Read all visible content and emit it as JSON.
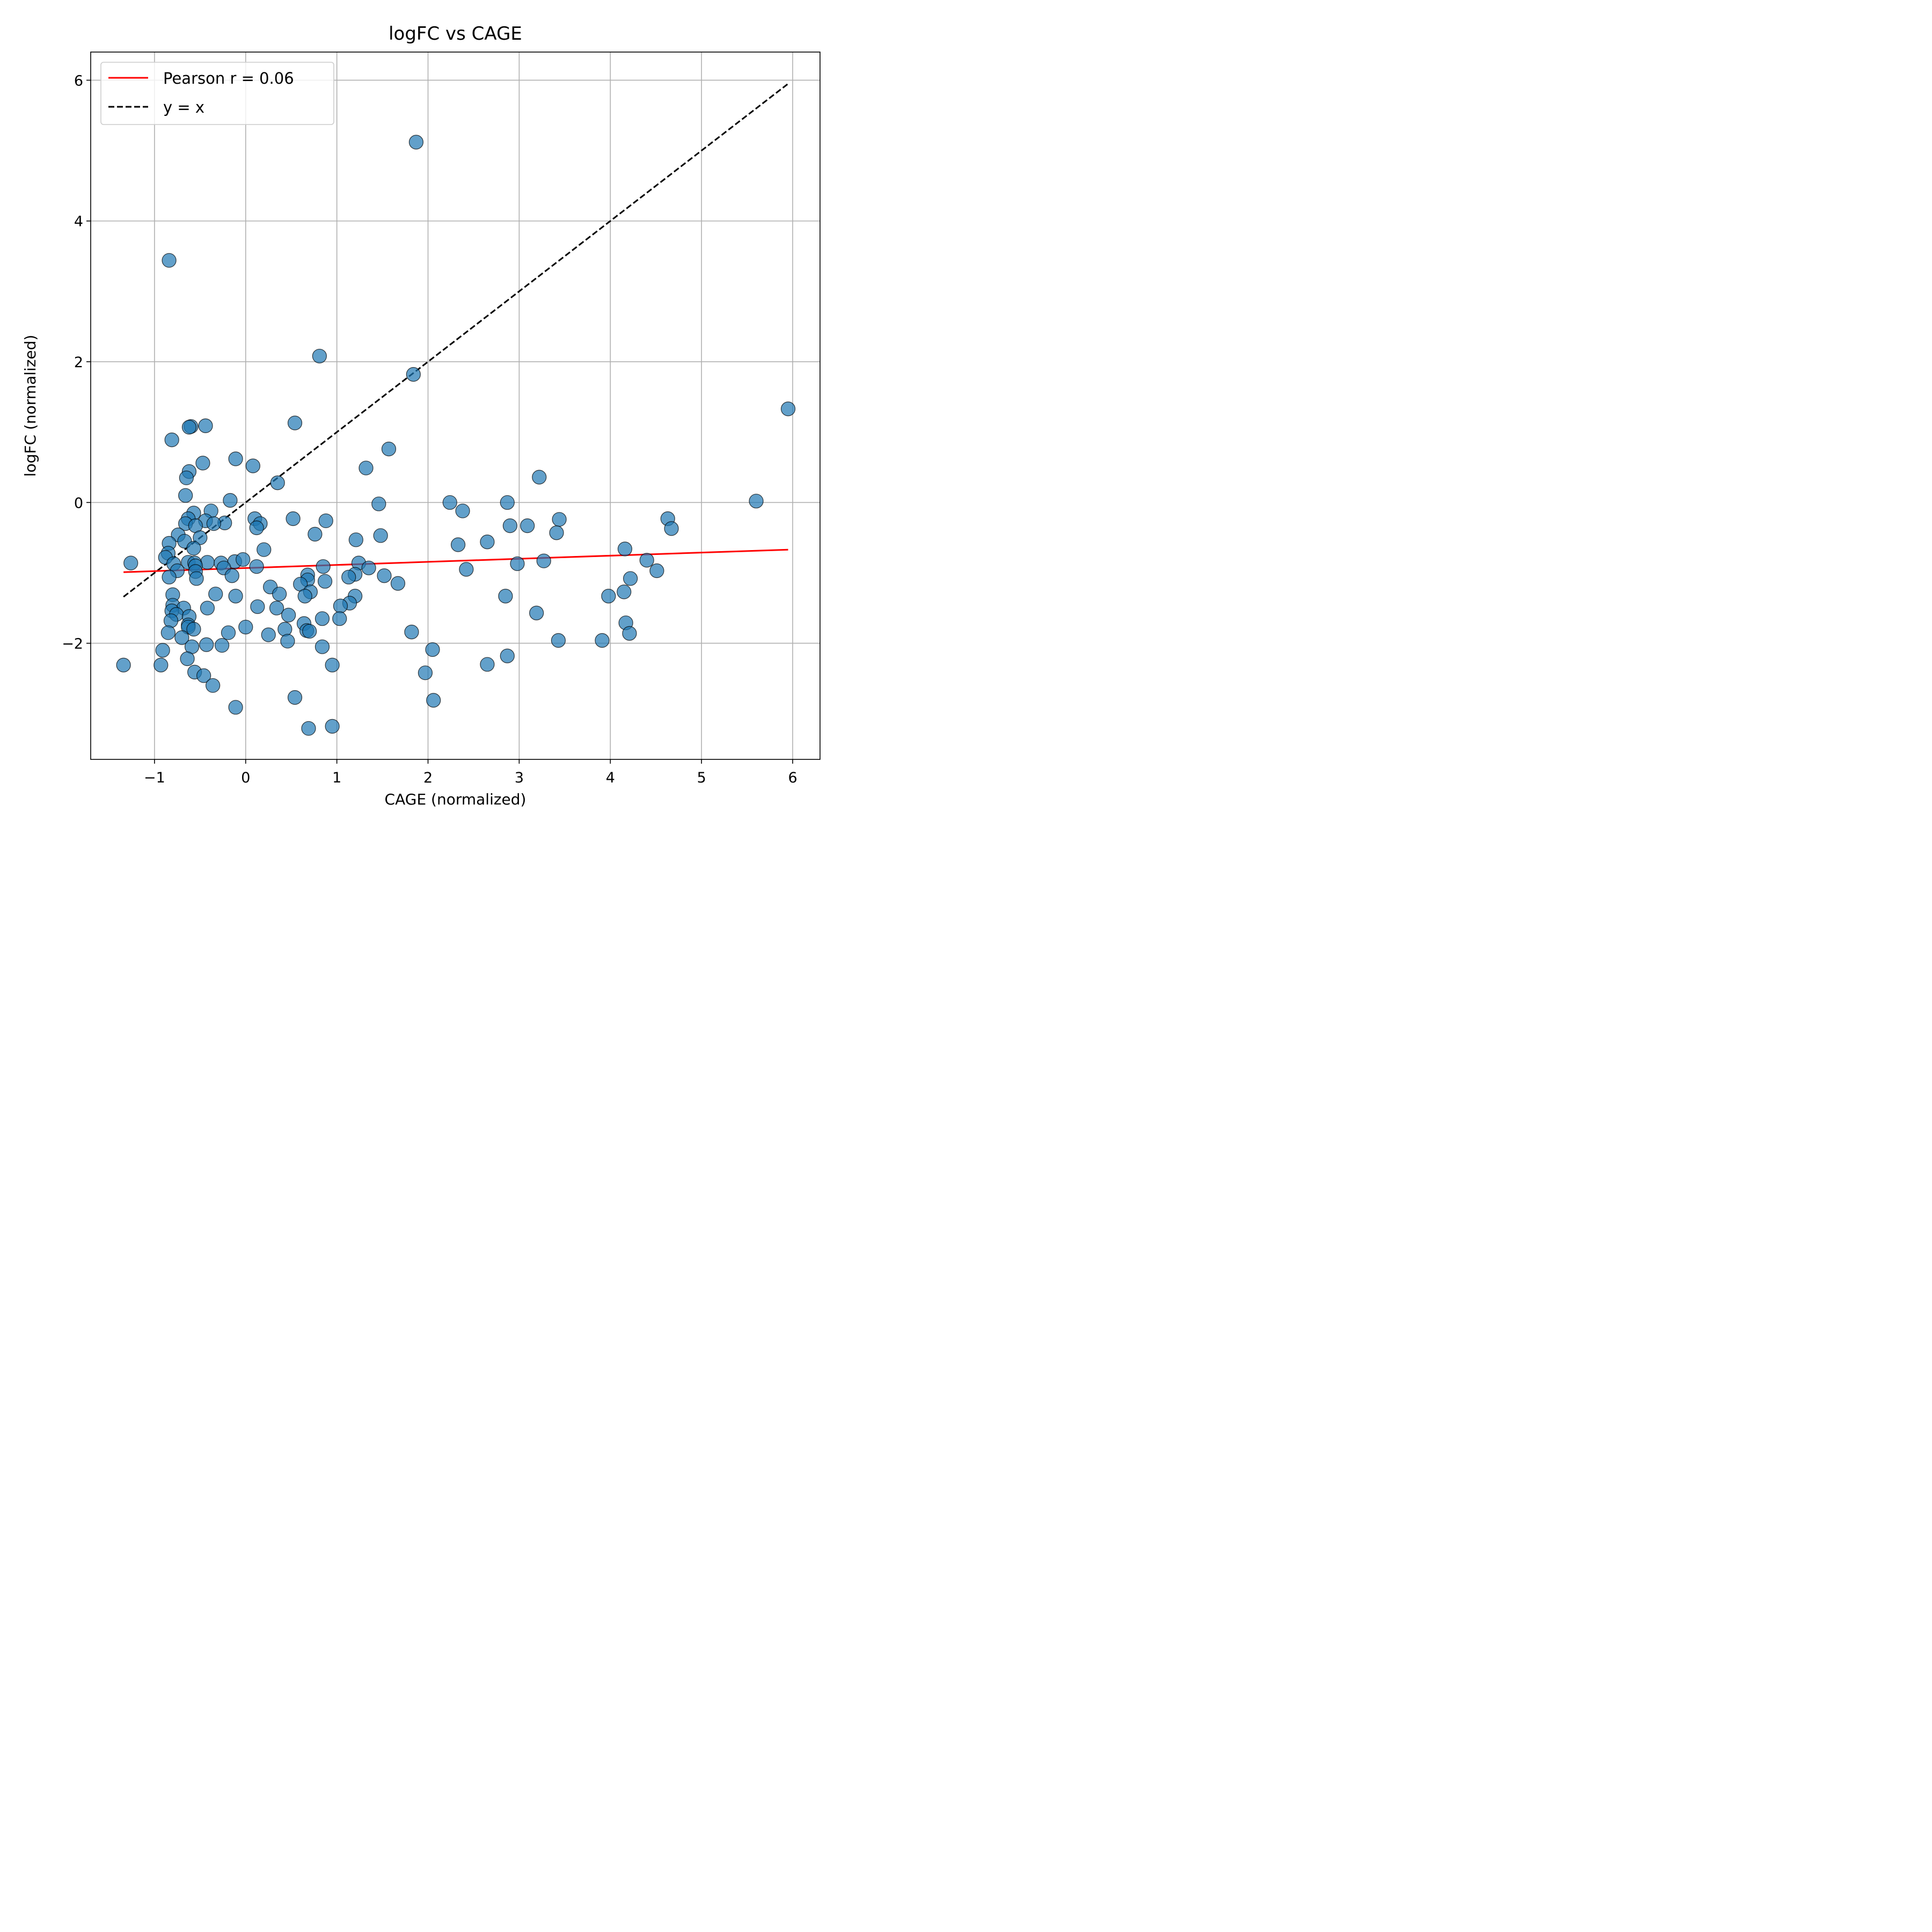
{
  "chart_data": {
    "type": "scatter",
    "title": "logFC vs CAGE",
    "xlabel": "CAGE (normalized)",
    "ylabel": "logFC (normalized)",
    "xlim": [
      -1.7,
      6.3
    ],
    "ylim": [
      -3.65,
      6.4
    ],
    "xticks": [
      -1,
      0,
      1,
      2,
      3,
      4,
      5,
      6
    ],
    "xtick_labels": [
      "−1",
      "0",
      "1",
      "2",
      "3",
      "4",
      "5",
      "6"
    ],
    "yticks": [
      -2,
      0,
      2,
      4,
      6
    ],
    "ytick_labels": [
      "−2",
      "0",
      "2",
      "4",
      "6"
    ],
    "grid": true,
    "legend_position": "upper-left",
    "colors": {
      "points": "#1f77b4",
      "fit_line": "#ff0000",
      "identity_line": "#000000"
    },
    "legend": [
      {
        "label": "Pearson r = 0.06",
        "style": "solid",
        "color": "#ff0000"
      },
      {
        "label": "y = x",
        "style": "dashed",
        "color": "#000000"
      }
    ],
    "fit_line": {
      "x": [
        -1.34,
        5.95
      ],
      "y": [
        -0.99,
        -0.67
      ]
    },
    "identity_line": {
      "x": [
        -1.34,
        5.95
      ],
      "y": [
        -1.34,
        5.95
      ]
    },
    "points": [
      [
        1.87,
        5.12
      ],
      [
        -0.84,
        3.44
      ],
      [
        0.81,
        2.08
      ],
      [
        1.84,
        1.82
      ],
      [
        5.95,
        1.33
      ],
      [
        0.54,
        1.13
      ],
      [
        -0.6,
        1.08
      ],
      [
        -0.62,
        1.07
      ],
      [
        -0.44,
        1.09
      ],
      [
        -0.81,
        0.89
      ],
      [
        1.57,
        0.76
      ],
      [
        -0.11,
        0.62
      ],
      [
        -0.47,
        0.56
      ],
      [
        0.08,
        0.52
      ],
      [
        1.32,
        0.49
      ],
      [
        -0.62,
        0.44
      ],
      [
        -0.65,
        0.35
      ],
      [
        3.22,
        0.36
      ],
      [
        0.35,
        0.28
      ],
      [
        -0.66,
        0.1
      ],
      [
        -0.17,
        0.03
      ],
      [
        5.6,
        0.02
      ],
      [
        2.24,
        0.0
      ],
      [
        2.87,
        0.0
      ],
      [
        1.46,
        -0.02
      ],
      [
        -0.38,
        -0.12
      ],
      [
        -0.57,
        -0.15
      ],
      [
        2.38,
        -0.12
      ],
      [
        0.52,
        -0.23
      ],
      [
        0.1,
        -0.23
      ],
      [
        -0.63,
        -0.23
      ],
      [
        3.44,
        -0.24
      ],
      [
        4.63,
        -0.23
      ],
      [
        0.88,
        -0.26
      ],
      [
        -0.44,
        -0.26
      ],
      [
        -0.23,
        -0.29
      ],
      [
        0.16,
        -0.3
      ],
      [
        -0.35,
        -0.3
      ],
      [
        -0.66,
        -0.3
      ],
      [
        -0.55,
        -0.33
      ],
      [
        3.09,
        -0.33
      ],
      [
        2.9,
        -0.33
      ],
      [
        0.12,
        -0.36
      ],
      [
        4.67,
        -0.37
      ],
      [
        3.41,
        -0.43
      ],
      [
        0.76,
        -0.45
      ],
      [
        -0.74,
        -0.46
      ],
      [
        1.48,
        -0.47
      ],
      [
        -0.5,
        -0.5
      ],
      [
        1.21,
        -0.53
      ],
      [
        -0.84,
        -0.58
      ],
      [
        -0.67,
        -0.55
      ],
      [
        2.65,
        -0.56
      ],
      [
        2.33,
        -0.6
      ],
      [
        -0.57,
        -0.65
      ],
      [
        4.16,
        -0.66
      ],
      [
        0.2,
        -0.67
      ],
      [
        -0.85,
        -0.72
      ],
      [
        -0.88,
        -0.78
      ],
      [
        4.4,
        -0.82
      ],
      [
        3.27,
        -0.83
      ],
      [
        -0.63,
        -0.85
      ],
      [
        -0.42,
        -0.85
      ],
      [
        -0.56,
        -0.86
      ],
      [
        -0.27,
        -0.86
      ],
      [
        -0.12,
        -0.84
      ],
      [
        -0.03,
        -0.81
      ],
      [
        1.24,
        -0.86
      ],
      [
        -0.79,
        -0.87
      ],
      [
        2.98,
        -0.87
      ],
      [
        -0.55,
        -0.9
      ],
      [
        0.12,
        -0.91
      ],
      [
        0.85,
        -0.91
      ],
      [
        -0.24,
        -0.93
      ],
      [
        1.35,
        -0.93
      ],
      [
        2.42,
        -0.95
      ],
      [
        4.51,
        -0.97
      ],
      [
        -0.75,
        -0.97
      ],
      [
        -0.55,
        -0.98
      ],
      [
        0.68,
        -1.03
      ],
      [
        -0.15,
        -1.04
      ],
      [
        1.2,
        -1.02
      ],
      [
        -0.84,
        -1.06
      ],
      [
        1.52,
        -1.04
      ],
      [
        -0.54,
        -1.08
      ],
      [
        1.13,
        -1.06
      ],
      [
        0.68,
        -1.1
      ],
      [
        0.87,
        -1.12
      ],
      [
        4.22,
        -1.08
      ],
      [
        1.67,
        -1.15
      ],
      [
        0.6,
        -1.16
      ],
      [
        0.27,
        -1.2
      ],
      [
        4.15,
        -1.27
      ],
      [
        0.71,
        -1.27
      ],
      [
        -0.33,
        -1.3
      ],
      [
        0.37,
        -1.3
      ],
      [
        -0.8,
        -1.31
      ],
      [
        0.65,
        -1.33
      ],
      [
        -0.11,
        -1.33
      ],
      [
        1.2,
        -1.33
      ],
      [
        2.85,
        -1.33
      ],
      [
        3.98,
        -1.33
      ],
      [
        1.14,
        -1.43
      ],
      [
        1.04,
        -1.47
      ],
      [
        0.13,
        -1.48
      ],
      [
        -0.8,
        -1.46
      ],
      [
        -0.68,
        -1.5
      ],
      [
        0.34,
        -1.5
      ],
      [
        -0.42,
        -1.5
      ],
      [
        -0.81,
        -1.54
      ],
      [
        -0.76,
        -1.59
      ],
      [
        3.19,
        -1.57
      ],
      [
        0.47,
        -1.6
      ],
      [
        -0.62,
        -1.62
      ],
      [
        1.03,
        -1.65
      ],
      [
        0.84,
        -1.65
      ],
      [
        -0.82,
        -1.68
      ],
      [
        4.17,
        -1.71
      ],
      [
        0.64,
        -1.72
      ],
      [
        -0.63,
        -1.74
      ],
      [
        -0.63,
        -1.77
      ],
      [
        0.0,
        -1.77
      ],
      [
        -0.57,
        -1.8
      ],
      [
        0.43,
        -1.8
      ],
      [
        0.67,
        -1.82
      ],
      [
        0.7,
        -1.83
      ],
      [
        1.82,
        -1.84
      ],
      [
        -0.19,
        -1.85
      ],
      [
        -0.85,
        -1.85
      ],
      [
        4.21,
        -1.86
      ],
      [
        0.25,
        -1.88
      ],
      [
        -0.7,
        -1.92
      ],
      [
        3.43,
        -1.96
      ],
      [
        3.91,
        -1.96
      ],
      [
        0.46,
        -1.97
      ],
      [
        -0.43,
        -2.02
      ],
      [
        -0.26,
        -2.03
      ],
      [
        -0.59,
        -2.05
      ],
      [
        0.84,
        -2.05
      ],
      [
        2.05,
        -2.09
      ],
      [
        -0.91,
        -2.1
      ],
      [
        2.87,
        -2.18
      ],
      [
        -0.64,
        -2.22
      ],
      [
        -1.34,
        -2.31
      ],
      [
        -0.93,
        -2.31
      ],
      [
        0.95,
        -2.31
      ],
      [
        2.65,
        -2.3
      ],
      [
        -0.56,
        -2.41
      ],
      [
        1.97,
        -2.42
      ],
      [
        -0.46,
        -2.46
      ],
      [
        -0.36,
        -2.6
      ],
      [
        0.54,
        -2.77
      ],
      [
        2.06,
        -2.81
      ],
      [
        -0.11,
        -2.91
      ],
      [
        0.95,
        -3.18
      ],
      [
        0.69,
        -3.21
      ],
      [
        -1.26,
        -0.86
      ]
    ]
  }
}
